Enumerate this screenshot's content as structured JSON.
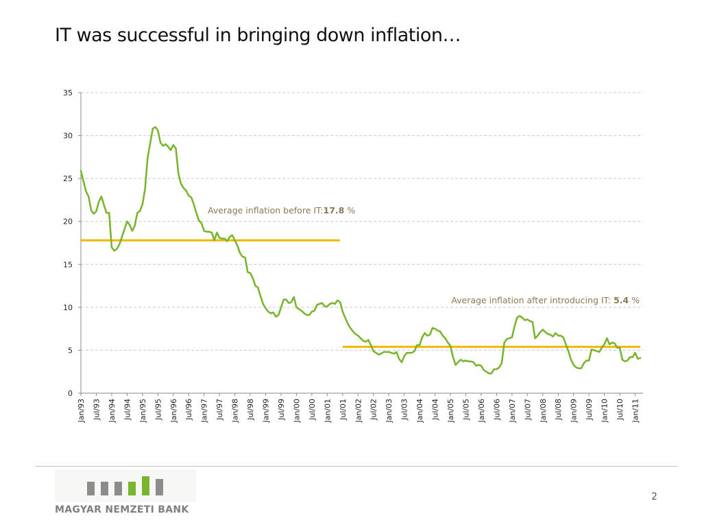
{
  "slide": {
    "title": "IT was successful in bringing down inflation…",
    "page_number": "2"
  },
  "logo": {
    "text": "MAGYAR NEMZETI BANK",
    "bar_colors": [
      "#8c8c8c",
      "#8c8c8c",
      "#8c8c8c",
      "#7ab530",
      "#7ab530",
      "#8c8c8c"
    ]
  },
  "colors": {
    "series": "#7ab530",
    "average_lines": "#f2b800",
    "grid": "#c8c8c8",
    "annotation_text": "#8a7a55"
  },
  "chart_data": {
    "type": "line",
    "title": "",
    "xlabel": "",
    "ylabel": "",
    "ylim": [
      0,
      35
    ],
    "yticks": [
      0,
      5,
      10,
      15,
      20,
      25,
      30,
      35
    ],
    "grid": "horizontal dashed",
    "x_start": "Jan/93",
    "x_end": "Mar/11",
    "x_tick_labels": [
      "Jan/93",
      "Jul/93",
      "Jan/94",
      "Jul/94",
      "Jan/95",
      "Jul/95",
      "Jan/96",
      "Jul/96",
      "Jan/97",
      "Jul/97",
      "Jan/98",
      "Jul/98",
      "Jan/99",
      "Jul/99",
      "Jan/00",
      "Jul/00",
      "Jan/01",
      "Jul/01",
      "Jan/02",
      "Jul/02",
      "Jan/03",
      "Jul/03",
      "Jan/04",
      "Jul/04",
      "Jan/05",
      "Jul/05",
      "Jan/06",
      "Jul/06",
      "Jan/07",
      "Jul/07",
      "Jan/08",
      "Jul/08",
      "Jan/09",
      "Jul/09",
      "Jan/10",
      "Jul/10",
      "Jan/11"
    ],
    "series": [
      {
        "name": "",
        "values": [
          25.9,
          24.7,
          23.5,
          22.9,
          21.3,
          20.9,
          21.2,
          22.3,
          22.9,
          21.9,
          21.0,
          21.0,
          17.0,
          16.6,
          16.8,
          17.3,
          18.2,
          19.1,
          20.0,
          19.6,
          18.9,
          19.5,
          21.0,
          21.2,
          22.0,
          23.8,
          27.4,
          29.1,
          30.8,
          31.0,
          30.6,
          29.2,
          28.8,
          29.0,
          28.7,
          28.3,
          28.9,
          28.5,
          25.6,
          24.4,
          23.9,
          23.6,
          23.0,
          22.8,
          22.0,
          21.0,
          20.1,
          19.8,
          18.9,
          18.8,
          18.8,
          18.7,
          17.8,
          18.7,
          18.1,
          18.0,
          18.0,
          17.7,
          18.2,
          18.4,
          17.8,
          17.2,
          16.3,
          15.9,
          15.8,
          14.1,
          14.0,
          13.4,
          12.5,
          12.3,
          11.3,
          10.4,
          9.9,
          9.5,
          9.3,
          9.4,
          8.9,
          9.1,
          10.0,
          10.9,
          10.9,
          10.5,
          10.6,
          11.2,
          10.0,
          9.8,
          9.6,
          9.3,
          9.1,
          9.1,
          9.5,
          9.6,
          10.3,
          10.4,
          10.5,
          10.1,
          10.1,
          10.4,
          10.5,
          10.4,
          10.8,
          10.6,
          9.5,
          8.8,
          8.1,
          7.6,
          7.2,
          6.9,
          6.7,
          6.4,
          6.1,
          6.0,
          6.2,
          5.6,
          4.9,
          4.7,
          4.5,
          4.6,
          4.8,
          4.8,
          4.8,
          4.7,
          4.6,
          4.8,
          4.0,
          3.6,
          4.3,
          4.7,
          4.7,
          4.7,
          4.9,
          5.6,
          5.6,
          6.5,
          7.0,
          6.7,
          6.8,
          7.6,
          7.5,
          7.3,
          7.2,
          6.7,
          6.4,
          5.9,
          5.5,
          4.2,
          3.3,
          3.6,
          3.9,
          3.7,
          3.8,
          3.7,
          3.7,
          3.6,
          3.2,
          3.3,
          3.2,
          2.7,
          2.5,
          2.3,
          2.3,
          2.8,
          2.8,
          3.0,
          3.5,
          5.9,
          6.3,
          6.4,
          6.5,
          7.8,
          8.8,
          9.0,
          8.8,
          8.5,
          8.6,
          8.4,
          8.3,
          6.4,
          6.7,
          7.1,
          7.4,
          7.1,
          6.9,
          6.8,
          6.6,
          7.0,
          6.7,
          6.7,
          6.5,
          5.7,
          4.9,
          3.9,
          3.3,
          3.0,
          2.9,
          2.9,
          3.5,
          3.8,
          3.8,
          5.1,
          5.0,
          4.9,
          4.8,
          5.3,
          5.7,
          6.4,
          5.7,
          5.9,
          5.8,
          5.3,
          5.3,
          3.9,
          3.7,
          3.8,
          4.2,
          4.2,
          4.7,
          4.0,
          4.1
        ]
      }
    ],
    "averages": [
      {
        "label": "Average inflation before IT:",
        "value": 17.8,
        "value_text": "17.8",
        "unit": " %",
        "from": "Jan/93",
        "to": "Jun/01"
      },
      {
        "label": "Average inflation after introducing IT: ",
        "value": 5.4,
        "value_text": "5.4",
        "unit": " %",
        "from": "Jul/01",
        "to": "Mar/11"
      }
    ]
  }
}
